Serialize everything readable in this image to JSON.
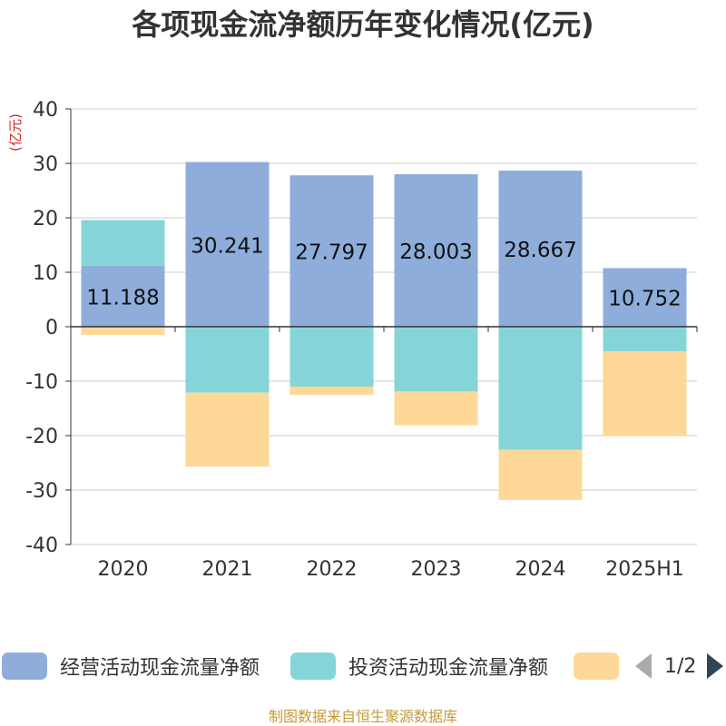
{
  "title": "各项现金流净额历年变化情况(亿元)",
  "footer": "制图数据来自恒生聚源数据库",
  "pager": {
    "text": "1/2",
    "prev_icon": "triangle-left-icon",
    "next_icon": "triangle-right-icon"
  },
  "legend": [
    {
      "label": "经营活动现金流量净额",
      "color": "#8eaddb"
    },
    {
      "label": "投资活动现金流量净额",
      "color": "#85d5d8"
    },
    {
      "label": "",
      "color": "#fdd897"
    }
  ],
  "chart_data": {
    "type": "bar",
    "stacked": true,
    "categories": [
      "2020",
      "2021",
      "2022",
      "2023",
      "2024",
      "2025H1"
    ],
    "ylabel": "(亿元)",
    "ylim": [
      -40,
      40
    ],
    "yticks": [
      40,
      30,
      20,
      10,
      0,
      -10,
      -20,
      -30,
      -40
    ],
    "grid": true,
    "legend_position": "bottom",
    "series": [
      {
        "name": "经营活动现金流量净额",
        "color": "#8eaddb",
        "values": [
          11.188,
          30.241,
          27.797,
          28.003,
          28.667,
          10.752
        ],
        "labels": [
          "11.188",
          "30.241",
          "27.797",
          "28.003",
          "28.667",
          "10.752"
        ]
      },
      {
        "name": "投资活动现金流量净额",
        "color": "#85d5d8",
        "values": [
          8.4,
          -12.1,
          -11.0,
          -11.9,
          -22.6,
          -4.5
        ]
      },
      {
        "name": "",
        "color": "#fdd897",
        "values": [
          -1.5,
          -13.6,
          -1.5,
          -6.2,
          -9.2,
          -15.6
        ]
      }
    ]
  }
}
